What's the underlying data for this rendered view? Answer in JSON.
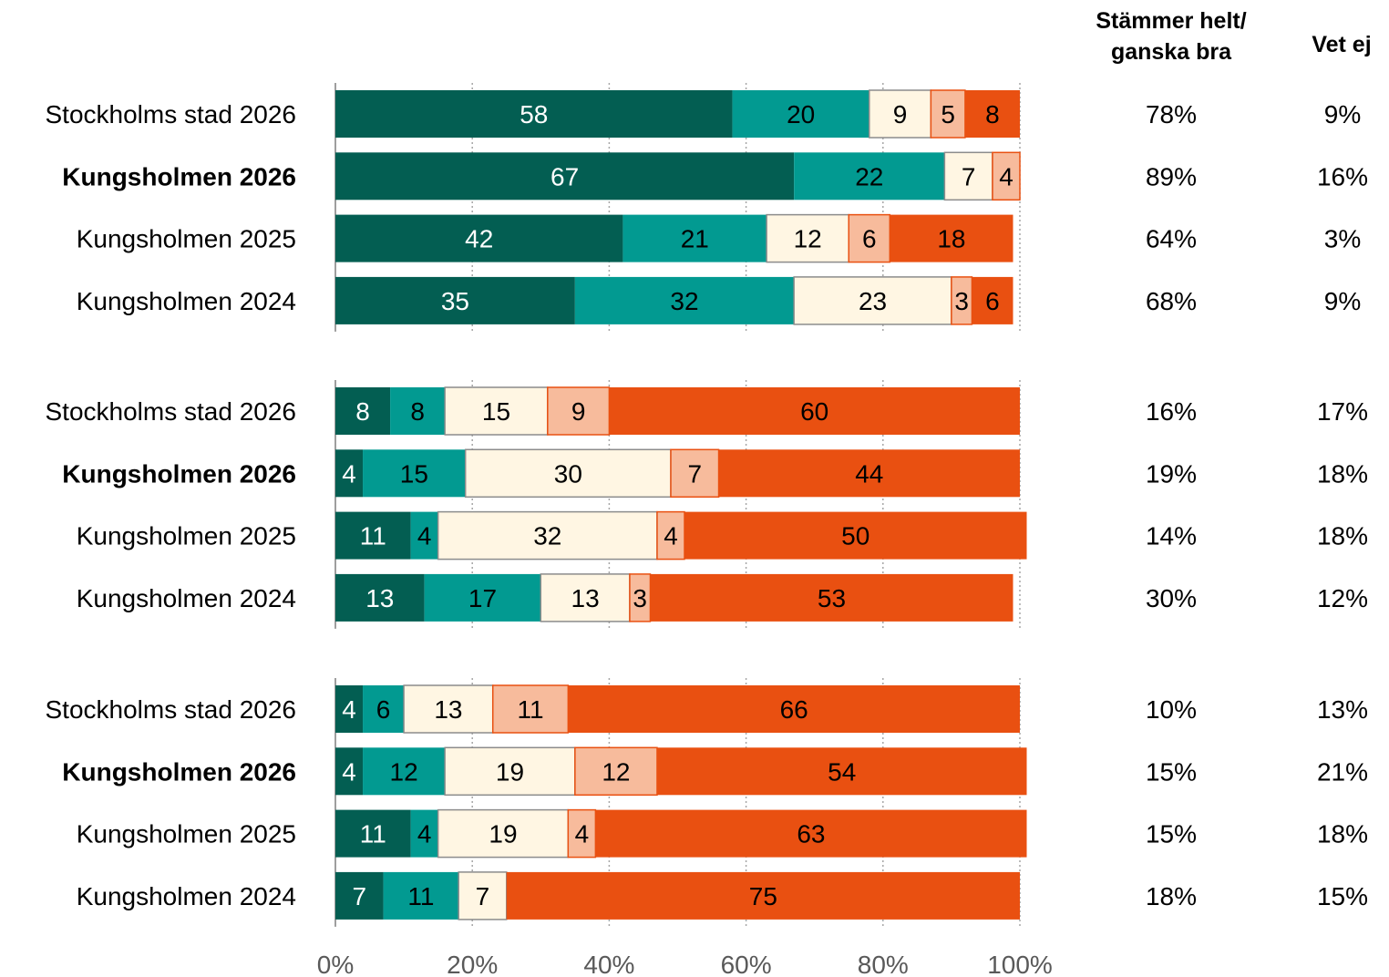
{
  "columns": {
    "agree_header_line1": "Stämmer helt/",
    "agree_header_line2": "ganska bra",
    "dontknow_header": "Vet ej"
  },
  "colors": {
    "seg1": "#035e52",
    "seg2": "#029a91",
    "seg3": "#fff6e3",
    "seg4": "#f7bb9c",
    "seg5": "#e95011",
    "seg3_border": "#8c8c8c",
    "seg4_border": "#e95011",
    "grid": "#a6a6a6"
  },
  "chart_data": {
    "type": "bar",
    "orientation": "horizontal",
    "stacked": true,
    "xlim": [
      0,
      100
    ],
    "x_ticks": [
      "0%",
      "20%",
      "40%",
      "60%",
      "80%",
      "100%"
    ],
    "grid": true,
    "groups": [
      {
        "rows": [
          {
            "label": "Stockholms stad 2026",
            "bold": false,
            "values": [
              58,
              20,
              9,
              5,
              8
            ],
            "agree": "78%",
            "dontknow": "9%"
          },
          {
            "label": "Kungsholmen 2026",
            "bold": true,
            "values": [
              67,
              22,
              7,
              4,
              0
            ],
            "agree": "89%",
            "dontknow": "16%"
          },
          {
            "label": "Kungsholmen 2025",
            "bold": false,
            "values": [
              42,
              21,
              12,
              6,
              18
            ],
            "agree": "64%",
            "dontknow": "3%"
          },
          {
            "label": "Kungsholmen 2024",
            "bold": false,
            "values": [
              35,
              32,
              23,
              3,
              6
            ],
            "agree": "68%",
            "dontknow": "9%"
          }
        ]
      },
      {
        "rows": [
          {
            "label": "Stockholms stad 2026",
            "bold": false,
            "values": [
              8,
              8,
              15,
              9,
              60
            ],
            "agree": "16%",
            "dontknow": "17%"
          },
          {
            "label": "Kungsholmen 2026",
            "bold": true,
            "values": [
              4,
              15,
              30,
              7,
              44
            ],
            "agree": "19%",
            "dontknow": "18%"
          },
          {
            "label": "Kungsholmen 2025",
            "bold": false,
            "values": [
              11,
              4,
              32,
              4,
              50
            ],
            "agree": "14%",
            "dontknow": "18%"
          },
          {
            "label": "Kungsholmen 2024",
            "bold": false,
            "values": [
              13,
              17,
              13,
              3,
              53
            ],
            "agree": "30%",
            "dontknow": "12%"
          }
        ]
      },
      {
        "rows": [
          {
            "label": "Stockholms stad 2026",
            "bold": false,
            "values": [
              4,
              6,
              13,
              11,
              66
            ],
            "agree": "10%",
            "dontknow": "13%"
          },
          {
            "label": "Kungsholmen 2026",
            "bold": true,
            "values": [
              4,
              12,
              19,
              12,
              54
            ],
            "agree": "15%",
            "dontknow": "21%"
          },
          {
            "label": "Kungsholmen 2025",
            "bold": false,
            "values": [
              11,
              4,
              19,
              4,
              63
            ],
            "agree": "15%",
            "dontknow": "18%"
          },
          {
            "label": "Kungsholmen 2024",
            "bold": false,
            "values": [
              7,
              11,
              7,
              0,
              75
            ],
            "agree": "18%",
            "dontknow": "15%"
          }
        ]
      }
    ]
  }
}
